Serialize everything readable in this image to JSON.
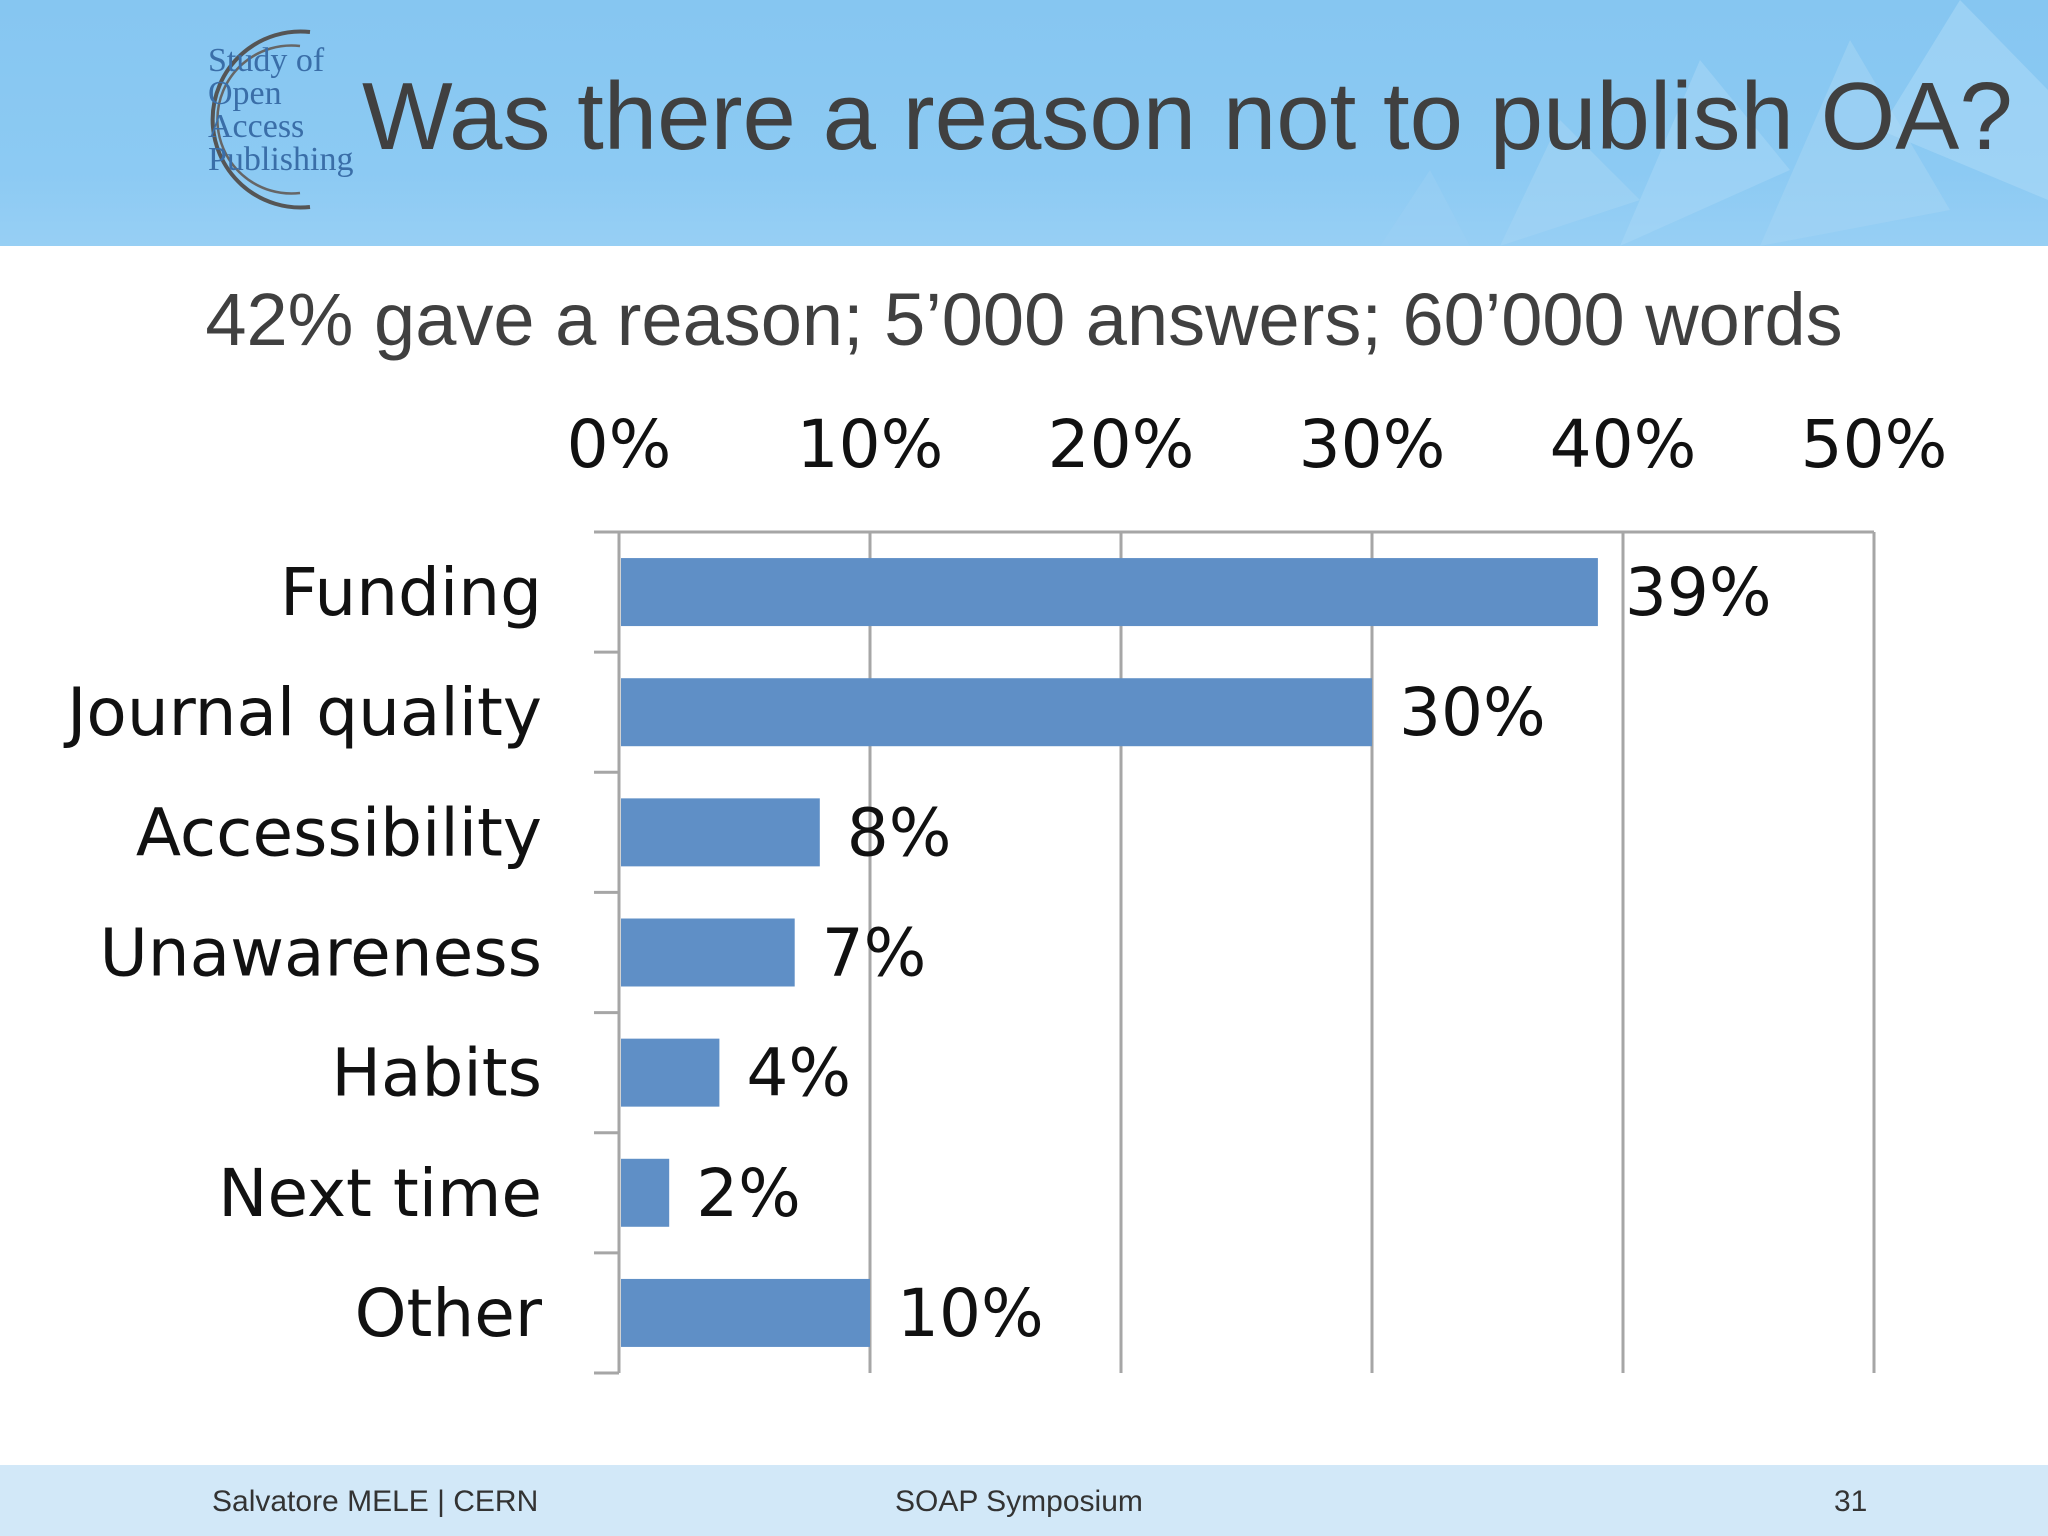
{
  "slide": {
    "title": "Was there a reason not to publish OA?",
    "subtitle": "42% gave a reason; 5’000 answers; 60’000 words",
    "logo_text": "Study of\nOpen\nAccess\nPublishing"
  },
  "footer": {
    "author": "Salvatore MELE | CERN",
    "event": "SOAP Symposium",
    "page": "31"
  },
  "colors": {
    "bar": "#5f8fc6",
    "grid": "#a6a6a6",
    "header": "#8ccaf3",
    "footer": "#d2e8f8"
  },
  "chart_data": {
    "type": "bar",
    "orientation": "horizontal",
    "categories": [
      "Funding",
      "Journal quality",
      "Accessibility",
      "Unawareness",
      "Habits",
      "Next time",
      "Other"
    ],
    "values": [
      39,
      30,
      8,
      7,
      4,
      2,
      10
    ],
    "value_labels": [
      "39%",
      "30%",
      "8%",
      "7%",
      "4%",
      "2%",
      "10%"
    ],
    "xlim": [
      0,
      50
    ],
    "xticks": [
      0,
      10,
      20,
      30,
      40,
      50
    ],
    "xtick_labels": [
      "0%",
      "10%",
      "20%",
      "30%",
      "40%",
      "50%"
    ],
    "x_axis_position": "top",
    "grid": true
  }
}
